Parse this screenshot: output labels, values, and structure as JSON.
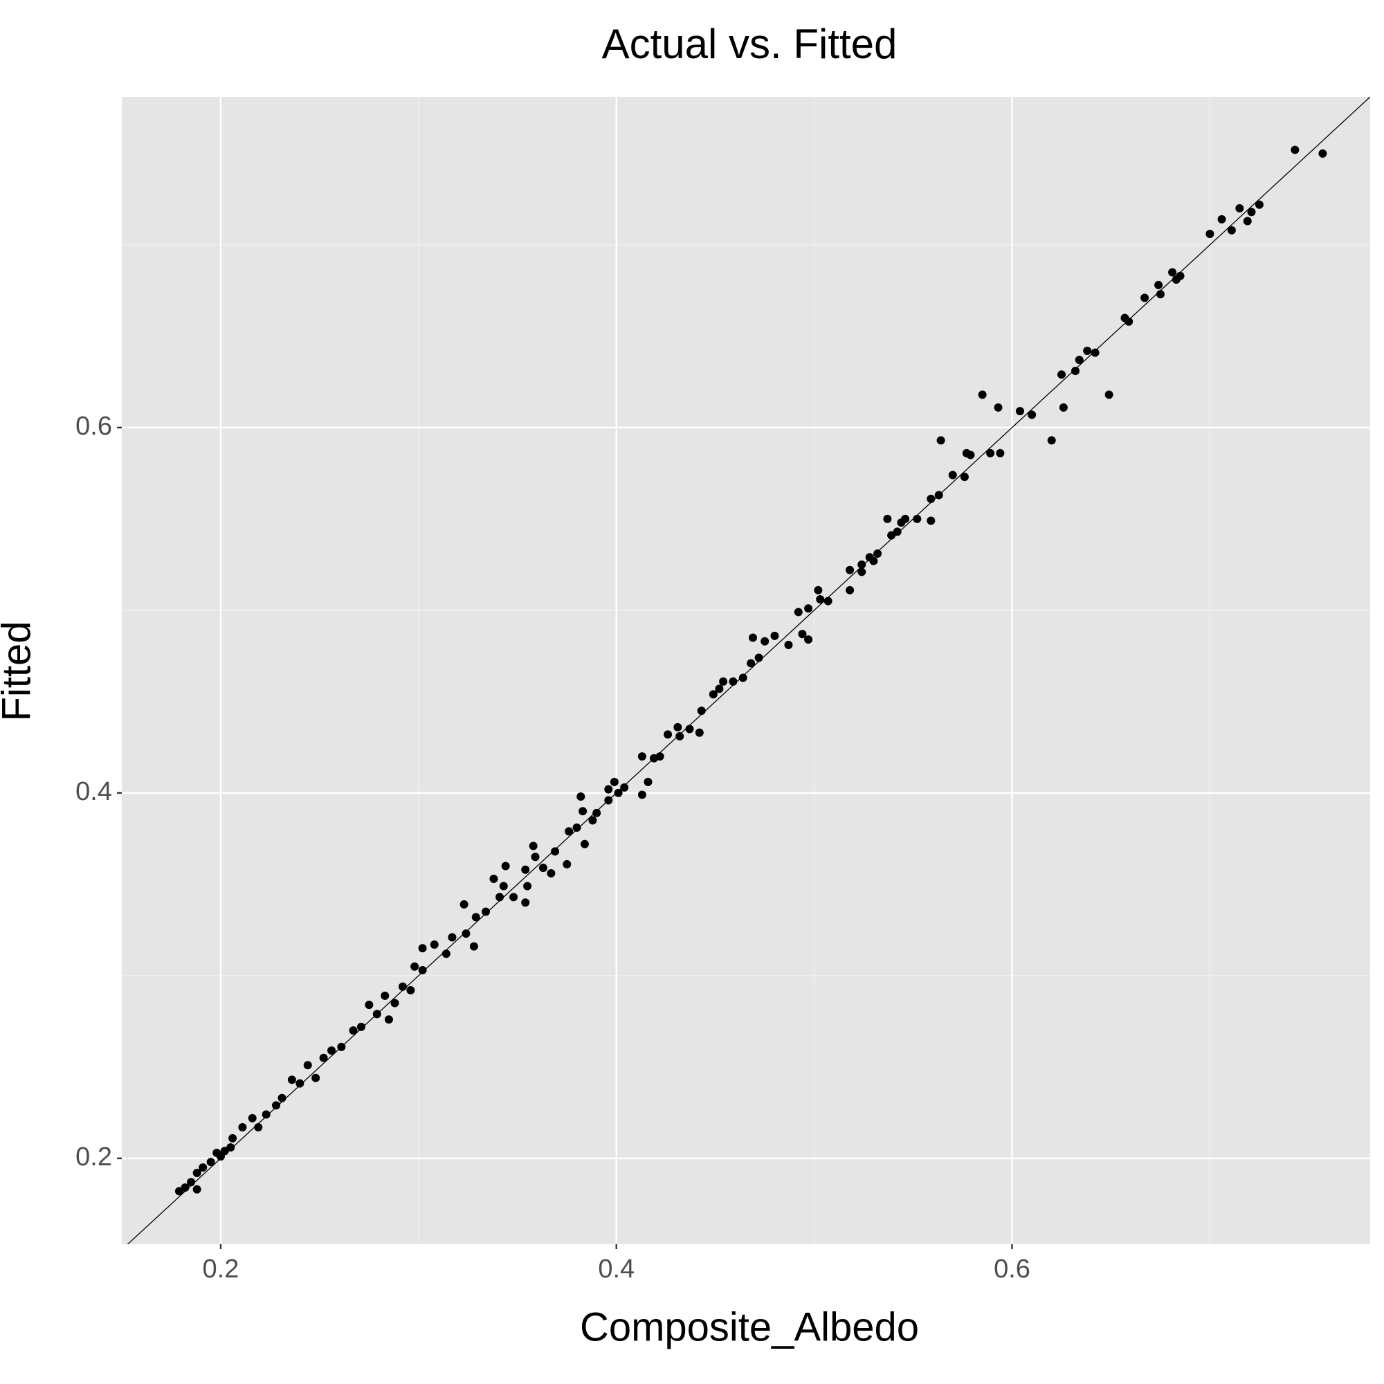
{
  "chart_data": {
    "type": "scatter",
    "title": "Actual vs. Fitted",
    "x_label": "Composite_Albedo",
    "y_label": "Fitted",
    "xlim": [
      0.15,
      0.781
    ],
    "ylim": [
      0.153,
      0.781
    ],
    "xticks": [
      0.2,
      0.4,
      0.6
    ],
    "yticks": [
      0.2,
      0.4,
      0.6
    ],
    "x_minor_ticks": [
      0.3,
      0.5,
      0.7
    ],
    "y_minor_ticks": [
      0.3,
      0.5,
      0.7
    ],
    "grid": true,
    "identity_line": true,
    "color": "#000000",
    "x": [
      0.743,
      0.757,
      0.7,
      0.706,
      0.711,
      0.715,
      0.719,
      0.721,
      0.725,
      0.667,
      0.674,
      0.675,
      0.681,
      0.683,
      0.685,
      0.657,
      0.659,
      0.625,
      0.632,
      0.634,
      0.638,
      0.642,
      0.649,
      0.585,
      0.593,
      0.604,
      0.61,
      0.626,
      0.62,
      0.564,
      0.577,
      0.589,
      0.594,
      0.579,
      0.57,
      0.576,
      0.559,
      0.563,
      0.559,
      0.552,
      0.537,
      0.544,
      0.546,
      0.539,
      0.542,
      0.532,
      0.528,
      0.53,
      0.524,
      0.518,
      0.524,
      0.518,
      0.507,
      0.502,
      0.503,
      0.497,
      0.492,
      0.494,
      0.497,
      0.487,
      0.48,
      0.475,
      0.469,
      0.472,
      0.468,
      0.464,
      0.459,
      0.454,
      0.452,
      0.449,
      0.443,
      0.442,
      0.437,
      0.432,
      0.431,
      0.426,
      0.422,
      0.419,
      0.413,
      0.416,
      0.413,
      0.404,
      0.401,
      0.396,
      0.399,
      0.396,
      0.39,
      0.388,
      0.383,
      0.382,
      0.384,
      0.38,
      0.376,
      0.375,
      0.369,
      0.367,
      0.363,
      0.359,
      0.358,
      0.355,
      0.354,
      0.354,
      0.348,
      0.344,
      0.343,
      0.341,
      0.338,
      0.334,
      0.329,
      0.323,
      0.328,
      0.324,
      0.317,
      0.314,
      0.308,
      0.302,
      0.302,
      0.298,
      0.296,
      0.292,
      0.285,
      0.288,
      0.283,
      0.279,
      0.275,
      0.271,
      0.267,
      0.261,
      0.256,
      0.252,
      0.248,
      0.244,
      0.24,
      0.236,
      0.231,
      0.228,
      0.223,
      0.219,
      0.216,
      0.211,
      0.206,
      0.202,
      0.198,
      0.195,
      0.191,
      0.188,
      0.185,
      0.182,
      0.179,
      0.188,
      0.2,
      0.205
    ],
    "values": [
      0.752,
      0.75,
      0.706,
      0.714,
      0.708,
      0.72,
      0.713,
      0.718,
      0.722,
      0.671,
      0.678,
      0.673,
      0.685,
      0.681,
      0.683,
      0.66,
      0.658,
      0.629,
      0.631,
      0.637,
      0.642,
      0.641,
      0.618,
      0.618,
      0.611,
      0.609,
      0.607,
      0.611,
      0.593,
      0.593,
      0.586,
      0.586,
      0.586,
      0.585,
      0.574,
      0.573,
      0.561,
      0.563,
      0.549,
      0.55,
      0.55,
      0.548,
      0.55,
      0.541,
      0.543,
      0.531,
      0.529,
      0.527,
      0.525,
      0.522,
      0.521,
      0.511,
      0.505,
      0.511,
      0.506,
      0.501,
      0.499,
      0.487,
      0.484,
      0.481,
      0.486,
      0.483,
      0.485,
      0.474,
      0.471,
      0.463,
      0.461,
      0.461,
      0.457,
      0.454,
      0.445,
      0.433,
      0.435,
      0.431,
      0.436,
      0.432,
      0.42,
      0.419,
      0.42,
      0.406,
      0.399,
      0.403,
      0.4,
      0.396,
      0.406,
      0.402,
      0.389,
      0.385,
      0.39,
      0.398,
      0.372,
      0.381,
      0.379,
      0.361,
      0.368,
      0.356,
      0.359,
      0.365,
      0.371,
      0.349,
      0.358,
      0.34,
      0.343,
      0.36,
      0.349,
      0.343,
      0.353,
      0.335,
      0.332,
      0.339,
      0.316,
      0.323,
      0.321,
      0.312,
      0.317,
      0.315,
      0.303,
      0.305,
      0.292,
      0.294,
      0.276,
      0.285,
      0.289,
      0.279,
      0.284,
      0.272,
      0.27,
      0.261,
      0.259,
      0.255,
      0.244,
      0.251,
      0.241,
      0.243,
      0.233,
      0.229,
      0.224,
      0.217,
      0.222,
      0.217,
      0.211,
      0.204,
      0.203,
      0.198,
      0.195,
      0.192,
      0.187,
      0.184,
      0.182,
      0.183,
      0.201,
      0.206
    ]
  }
}
